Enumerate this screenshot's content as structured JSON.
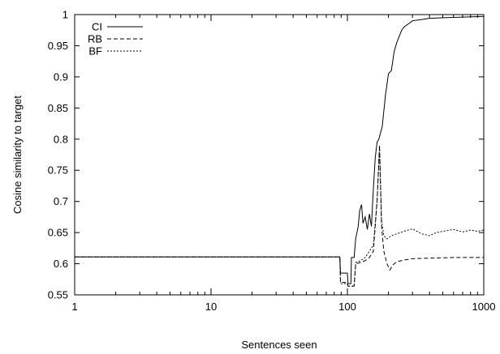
{
  "chart_data": {
    "type": "line",
    "xlabel": "Sentences seen",
    "ylabel": "Cosine similarity to target",
    "xscale": "log",
    "xlim": [
      1,
      1000
    ],
    "ylim": [
      0.55,
      1.0
    ],
    "xticks": [
      1,
      10,
      100,
      1000
    ],
    "xtick_labels": [
      "1",
      "10",
      "100",
      "1000"
    ],
    "yticks": [
      0.55,
      0.6,
      0.65,
      0.7,
      0.75,
      0.8,
      0.85,
      0.9,
      0.95,
      1.0
    ],
    "ytick_labels": [
      "0.55",
      "0.6",
      "0.65",
      "0.7",
      "0.75",
      "0.8",
      "0.85",
      "0.9",
      "0.95",
      "1"
    ],
    "grid": false,
    "legend_position": "top-left",
    "series": [
      {
        "name": "CI",
        "dash": "solid",
        "color": "#000000",
        "points": [
          [
            1,
            0.611
          ],
          [
            88,
            0.611
          ],
          [
            89,
            0.585
          ],
          [
            100,
            0.585
          ],
          [
            101,
            0.568
          ],
          [
            106,
            0.568
          ],
          [
            107,
            0.61
          ],
          [
            112,
            0.61
          ],
          [
            115,
            0.64
          ],
          [
            120,
            0.66
          ],
          [
            123,
            0.685
          ],
          [
            127,
            0.695
          ],
          [
            130,
            0.665
          ],
          [
            135,
            0.675
          ],
          [
            140,
            0.655
          ],
          [
            145,
            0.68
          ],
          [
            150,
            0.66
          ],
          [
            155,
            0.72
          ],
          [
            160,
            0.77
          ],
          [
            165,
            0.795
          ],
          [
            170,
            0.8
          ],
          [
            180,
            0.82
          ],
          [
            190,
            0.87
          ],
          [
            200,
            0.905
          ],
          [
            210,
            0.91
          ],
          [
            220,
            0.94
          ],
          [
            230,
            0.955
          ],
          [
            240,
            0.965
          ],
          [
            250,
            0.975
          ],
          [
            260,
            0.98
          ],
          [
            280,
            0.985
          ],
          [
            300,
            0.99
          ],
          [
            350,
            0.992
          ],
          [
            400,
            0.994
          ],
          [
            500,
            0.995
          ],
          [
            700,
            0.996
          ],
          [
            1000,
            0.997
          ]
        ]
      },
      {
        "name": "RB",
        "dash": "dashed",
        "color": "#000000",
        "points": [
          [
            1,
            0.611
          ],
          [
            88,
            0.611
          ],
          [
            89,
            0.57
          ],
          [
            100,
            0.57
          ],
          [
            101,
            0.564
          ],
          [
            112,
            0.564
          ],
          [
            115,
            0.6
          ],
          [
            125,
            0.602
          ],
          [
            135,
            0.605
          ],
          [
            145,
            0.61
          ],
          [
            155,
            0.62
          ],
          [
            165,
            0.7
          ],
          [
            172,
            0.79
          ],
          [
            178,
            0.66
          ],
          [
            185,
            0.62
          ],
          [
            195,
            0.6
          ],
          [
            205,
            0.59
          ],
          [
            215,
            0.598
          ],
          [
            230,
            0.603
          ],
          [
            260,
            0.606
          ],
          [
            300,
            0.608
          ],
          [
            400,
            0.609
          ],
          [
            600,
            0.61
          ],
          [
            1000,
            0.61
          ]
        ]
      },
      {
        "name": "BF",
        "dash": "dotted",
        "color": "#000000",
        "points": [
          [
            1,
            0.611
          ],
          [
            88,
            0.611
          ],
          [
            89,
            0.568
          ],
          [
            100,
            0.568
          ],
          [
            101,
            0.564
          ],
          [
            112,
            0.564
          ],
          [
            115,
            0.602
          ],
          [
            125,
            0.605
          ],
          [
            135,
            0.61
          ],
          [
            145,
            0.62
          ],
          [
            155,
            0.63
          ],
          [
            165,
            0.7
          ],
          [
            172,
            0.785
          ],
          [
            178,
            0.67
          ],
          [
            185,
            0.645
          ],
          [
            195,
            0.64
          ],
          [
            210,
            0.645
          ],
          [
            230,
            0.648
          ],
          [
            260,
            0.652
          ],
          [
            300,
            0.656
          ],
          [
            350,
            0.648
          ],
          [
            400,
            0.645
          ],
          [
            450,
            0.65
          ],
          [
            500,
            0.652
          ],
          [
            600,
            0.655
          ],
          [
            700,
            0.651
          ],
          [
            800,
            0.654
          ],
          [
            900,
            0.652
          ],
          [
            1000,
            0.654
          ]
        ]
      }
    ]
  }
}
